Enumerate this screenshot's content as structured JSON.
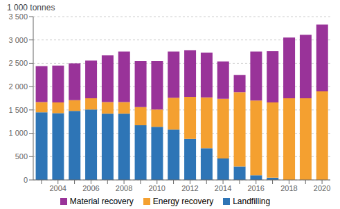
{
  "chart_data": {
    "type": "bar",
    "stacked": true,
    "ylabel": "1 000 tonnes",
    "categories": [
      null,
      "2004",
      null,
      "2006",
      null,
      "2008",
      null,
      "2010",
      null,
      "2012",
      null,
      "2014",
      null,
      "2016",
      null,
      "2018",
      null,
      "2020"
    ],
    "series": [
      {
        "name": "Landfilling",
        "color": "#2e75b6",
        "values": [
          1450,
          1430,
          1480,
          1510,
          1420,
          1420,
          1170,
          1140,
          1080,
          880,
          680,
          460,
          290,
          100,
          50,
          0,
          0,
          0
        ]
      },
      {
        "name": "Energy recovery",
        "color": "#f4a030",
        "values": [
          220,
          230,
          230,
          240,
          250,
          250,
          390,
          370,
          680,
          900,
          1090,
          1280,
          1590,
          1600,
          1610,
          1750,
          1750,
          1900
        ]
      },
      {
        "name": "Material recovery",
        "color": "#993399",
        "values": [
          770,
          790,
          790,
          810,
          1000,
          1080,
          990,
          1040,
          990,
          1000,
          960,
          800,
          370,
          1050,
          1100,
          1300,
          1360,
          1430
        ]
      }
    ],
    "ylim": [
      0,
      3500
    ],
    "yticks": [
      0,
      500,
      {
        "value": 1000,
        "label": "1 000"
      },
      {
        "value": 1500,
        "label": "1 500"
      },
      {
        "value": 2000,
        "label": "2 000"
      },
      {
        "value": 2500,
        "label": "2 500"
      },
      {
        "value": 3000,
        "label": "3 000"
      },
      {
        "value": 3500,
        "label": "3 500"
      }
    ],
    "grid": true,
    "legend": "bottom"
  }
}
